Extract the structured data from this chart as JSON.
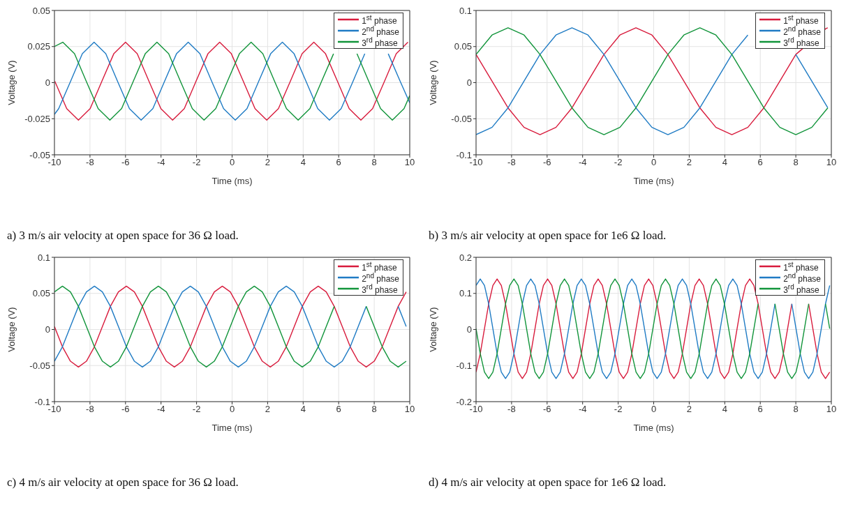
{
  "chart_data": [
    {
      "type": "line",
      "xlabel": "Time (ms)",
      "ylabel": "Voltage (V)",
      "xlim": [
        -10,
        10
      ],
      "xticks": [
        -10,
        -8,
        -6,
        -4,
        -2,
        0,
        2,
        4,
        6,
        8,
        10
      ],
      "ylim": [
        -0.05,
        0.05
      ],
      "yticks": [
        -0.05,
        -0.025,
        0,
        0.025,
        0.05
      ],
      "grid": true,
      "legend": "top right",
      "annotations": [
        "a) 3 m/s air velocity at open space for 36 Ω load."
      ],
      "series": [
        {
          "name": "1$^{st}$ phase",
          "color": "#d81b3c",
          "x": [
            -9.98,
            -9.31,
            -8.65,
            -7.99,
            -7.33,
            -6.66,
            -6.0,
            -5.34,
            -4.68,
            -4.01,
            -3.35,
            -2.69,
            -2.03,
            -1.36,
            -0.7,
            -0.04,
            0.63,
            1.29,
            1.95,
            2.61,
            3.28,
            3.94,
            4.6,
            5.26,
            5.93,
            6.59,
            7.25,
            7.91,
            8.58,
            9.24,
            9.9
          ],
          "values": [
            0.001,
            -0.018,
            -0.026,
            -0.018,
            0.001,
            0.02,
            0.028,
            0.02,
            0.001,
            -0.018,
            -0.026,
            -0.018,
            0.001,
            0.02,
            0.028,
            0.02,
            0.001,
            -0.018,
            -0.026,
            -0.018,
            0.001,
            0.02,
            0.028,
            0.02,
            0.001,
            -0.018,
            -0.026,
            -0.018,
            0.001,
            0.02,
            0.028
          ]
        },
        {
          "name": "2$^{nd}$ phase",
          "color": "#1f7bc4",
          "x": [
            -10,
            -9.76,
            -9.09,
            -8.43,
            -7.77,
            -7.11,
            -6.45,
            -5.78,
            -5.12,
            -4.46,
            -3.8,
            -3.13,
            -2.47,
            -1.81,
            -1.15,
            -0.48,
            0.18,
            0.84,
            1.5,
            2.17,
            2.83,
            3.49,
            4.16,
            4.82,
            5.48,
            6.14,
            6.81,
            7.47,
            8.13,
            8.79,
            9.46,
            10
          ],
          "values": [
            -0.022,
            -0.018,
            0.001,
            0.02,
            0.028,
            0.02,
            0.001,
            -0.018,
            -0.026,
            -0.018,
            0.001,
            0.02,
            0.028,
            0.02,
            0.001,
            -0.018,
            -0.026,
            -0.018,
            0.001,
            0.02,
            0.028,
            0.02,
            0.001,
            -0.018,
            -0.026,
            -0.018,
            0.001,
            0.02,
            null,
            0.02,
            0.001,
            -0.014
          ]
        },
        {
          "name": "3$^{rd}$ phase",
          "color": "#11943a",
          "x": [
            -10,
            -9.53,
            -8.87,
            -8.21,
            -7.54,
            -6.88,
            -6.22,
            -5.56,
            -4.89,
            -4.23,
            -3.57,
            -2.91,
            -2.24,
            -1.58,
            -0.92,
            -0.26,
            0.41,
            1.07,
            1.73,
            2.39,
            3.06,
            3.72,
            4.38,
            5.04,
            5.71,
            6.37,
            7.03,
            7.69,
            8.36,
            9.02,
            9.68,
            10
          ],
          "values": [
            0.025,
            0.028,
            0.02,
            0.001,
            -0.018,
            -0.026,
            -0.018,
            0.001,
            0.02,
            0.028,
            0.02,
            0.001,
            -0.018,
            -0.026,
            -0.018,
            0.001,
            0.02,
            0.028,
            0.02,
            0.001,
            -0.018,
            -0.026,
            -0.018,
            0.001,
            0.02,
            null,
            0.02,
            0.001,
            -0.018,
            -0.026,
            -0.018,
            -0.009
          ]
        }
      ]
    },
    {
      "type": "line",
      "xlabel": "Time (ms)",
      "ylabel": "Voltage (V)",
      "xlim": [
        -10,
        10
      ],
      "xticks": [
        -10,
        -8,
        -6,
        -4,
        -2,
        0,
        2,
        4,
        6,
        8,
        10
      ],
      "ylim": [
        -0.1,
        0.1
      ],
      "yticks": [
        -0.1,
        -0.05,
        0,
        0.05,
        0.1
      ],
      "grid": true,
      "legend": "top right",
      "annotations": [
        "b) 3 m/s air velocity at open space for 1e6 Ω load."
      ],
      "x": [
        -10,
        -9.1,
        -8.2,
        -7.3,
        -6.4,
        -5.5,
        -4.6,
        -3.7,
        -2.8,
        -1.9,
        -1.0,
        -0.1,
        0.8,
        1.7,
        2.6,
        3.5,
        4.4,
        5.3,
        6.2,
        7.1,
        8.0,
        8.9,
        9.8
      ],
      "series": [
        {
          "name": "1$^{st}$ phase",
          "color": "#d81b3c",
          "x": [
            -10,
            -9.1,
            -8.2,
            -7.3,
            -6.4,
            -5.5,
            -4.6,
            -3.7,
            -2.8,
            -1.9,
            -1.0,
            -0.1,
            0.8,
            1.7,
            2.6,
            3.5,
            4.4,
            5.3,
            6.2,
            7.1,
            8.0,
            9.7,
            9.8
          ],
          "values": [
            0.039,
            0.002,
            -0.035,
            -0.062,
            -0.072,
            -0.062,
            -0.035,
            0.002,
            0.039,
            0.066,
            0.076,
            0.066,
            0.039,
            0.002,
            -0.035,
            -0.062,
            -0.072,
            -0.062,
            -0.035,
            0.002,
            0.039,
            0.075,
            0.076
          ]
        },
        {
          "name": "2$^{nd}$ phase",
          "color": "#1f7bc4",
          "values": [
            -0.072,
            -0.062,
            -0.035,
            0.002,
            0.039,
            0.066,
            0.076,
            0.066,
            0.039,
            0.002,
            -0.035,
            -0.062,
            -0.072,
            -0.062,
            -0.035,
            0.002,
            0.039,
            0.066,
            null,
            null,
            0.039,
            0.002,
            -0.035
          ]
        },
        {
          "name": "3$^{rd}$ phase",
          "color": "#11943a",
          "values": [
            0.039,
            0.066,
            0.076,
            0.066,
            0.039,
            0.002,
            -0.035,
            -0.062,
            -0.072,
            -0.062,
            -0.035,
            0.002,
            0.039,
            0.066,
            0.076,
            0.066,
            0.039,
            0.002,
            -0.035,
            -0.062,
            -0.072,
            -0.062,
            -0.035
          ]
        }
      ]
    },
    {
      "type": "line",
      "xlabel": "Time (ms)",
      "ylabel": "Voltage (V)",
      "xlim": [
        -10,
        10
      ],
      "xticks": [
        -10,
        -8,
        -6,
        -4,
        -2,
        0,
        2,
        4,
        6,
        8,
        10
      ],
      "ylim": [
        -0.1,
        0.1
      ],
      "yticks": [
        -0.1,
        -0.05,
        0,
        0.05,
        0.1
      ],
      "grid": true,
      "legend": "top right",
      "annotations": [
        "c) 4 m/s air velocity at open space for 36 Ω load."
      ],
      "x": [
        -10,
        -9.55,
        -9.1,
        -8.65,
        -8.2,
        -7.75,
        -7.3,
        -6.85,
        -6.4,
        -5.95,
        -5.5,
        -5.05,
        -4.6,
        -4.15,
        -3.7,
        -3.25,
        -2.8,
        -2.35,
        -1.9,
        -1.45,
        -1,
        -0.55,
        -0.1,
        0.35,
        0.8,
        1.25,
        1.7,
        2.15,
        2.6,
        3.05,
        3.5,
        3.95,
        4.4,
        4.85,
        5.3,
        5.75,
        6.2,
        6.65,
        7.1,
        7.55,
        8,
        8.45,
        8.9,
        9.35,
        9.8
      ],
      "series": [
        {
          "name": "1$^{st}$ phase",
          "color": "#d81b3c",
          "values": [
            0.004,
            -0.024,
            -0.044,
            -0.052,
            -0.044,
            -0.024,
            0.004,
            0.032,
            0.052,
            0.06,
            0.052,
            0.032,
            0.004,
            -0.024,
            -0.044,
            -0.052,
            -0.044,
            -0.024,
            0.004,
            0.032,
            0.052,
            0.06,
            0.052,
            0.032,
            0.004,
            -0.024,
            -0.044,
            -0.052,
            -0.044,
            -0.024,
            0.004,
            0.032,
            0.052,
            0.06,
            0.052,
            0.032,
            0.004,
            -0.024,
            -0.044,
            -0.052,
            -0.044,
            -0.024,
            0.004,
            0.032,
            0.052
          ]
        },
        {
          "name": "2$^{nd}$ phase",
          "color": "#1f7bc4",
          "values": [
            -0.044,
            -0.024,
            0.004,
            0.032,
            0.052,
            0.06,
            0.052,
            0.032,
            0.004,
            -0.024,
            -0.044,
            -0.052,
            -0.044,
            -0.024,
            0.004,
            0.032,
            0.052,
            0.06,
            0.052,
            0.032,
            0.004,
            -0.024,
            -0.044,
            -0.052,
            -0.044,
            -0.024,
            0.004,
            0.032,
            0.052,
            0.06,
            0.052,
            0.032,
            0.004,
            -0.024,
            -0.044,
            -0.052,
            -0.044,
            -0.024,
            0.004,
            0.032,
            null,
            null,
            null,
            0.032,
            0.004
          ]
        },
        {
          "name": "3$^{rd}$ phase",
          "color": "#11943a",
          "values": [
            0.052,
            0.06,
            0.052,
            0.032,
            0.004,
            -0.024,
            -0.044,
            -0.052,
            -0.044,
            -0.024,
            0.004,
            0.032,
            0.052,
            0.06,
            0.052,
            0.032,
            0.004,
            -0.024,
            -0.044,
            -0.052,
            -0.044,
            -0.024,
            0.004,
            0.032,
            0.052,
            0.06,
            0.052,
            0.032,
            0.004,
            -0.024,
            -0.044,
            -0.052,
            -0.044,
            -0.024,
            0.004,
            0.032,
            null,
            null,
            null,
            0.032,
            0.004,
            -0.024,
            -0.044,
            -0.052,
            -0.044
          ]
        }
      ]
    },
    {
      "type": "line",
      "xlabel": "Time (ms)",
      "ylabel": "Voltage (V)",
      "xlim": [
        -10,
        10
      ],
      "xticks": [
        -10,
        -8,
        -6,
        -4,
        -2,
        0,
        2,
        4,
        6,
        8,
        10
      ],
      "ylim": [
        -0.2,
        0.2
      ],
      "yticks": [
        -0.2,
        -0.1,
        0,
        0.1,
        0.2
      ],
      "grid": true,
      "legend": "top right",
      "annotations": [
        "d) 4 m/s air velocity at open space for 1e6 Ω load."
      ],
      "x": [
        -10,
        -9.763,
        -9.526,
        -9.289,
        -9.052,
        -8.815,
        -8.578,
        -8.341,
        -8.104,
        -7.867,
        -7.63,
        -7.393,
        -7.156,
        -6.919,
        -6.682,
        -6.445,
        -6.208,
        -5.971,
        -5.734,
        -5.497,
        -5.26,
        -5.023,
        -4.786,
        -4.549,
        -4.312,
        -4.075,
        -3.838,
        -3.601,
        -3.364,
        -3.127,
        -2.89,
        -2.653,
        -2.416,
        -2.179,
        -1.942,
        -1.705,
        -1.468,
        -1.231,
        -0.994,
        -0.757,
        -0.52,
        -0.283,
        -0.046,
        0.191,
        0.428,
        0.665,
        0.902,
        1.139,
        1.376,
        1.613,
        1.85,
        2.087,
        2.324,
        2.561,
        2.798,
        3.035,
        3.272,
        3.509,
        3.746,
        3.983,
        4.22,
        4.457,
        4.694,
        4.931,
        5.168,
        5.405,
        5.642,
        5.879,
        6.116,
        6.353,
        6.59,
        6.827,
        7.064,
        7.301,
        7.538,
        7.775,
        8.012,
        8.249,
        8.486,
        8.723,
        8.96,
        9.197,
        9.434,
        9.671,
        9.908
      ],
      "series": [
        {
          "name": "1$^{st}$ phase",
          "color": "#d81b3c",
          "values": [
            -0.118,
            -0.067,
            0.002,
            0.071,
            0.122,
            0.14,
            0.122,
            0.071,
            0.002,
            -0.067,
            -0.118,
            -0.136,
            -0.118,
            -0.067,
            0.002,
            0.071,
            0.122,
            0.14,
            0.122,
            0.071,
            0.002,
            -0.067,
            -0.118,
            -0.136,
            -0.118,
            -0.067,
            0.002,
            0.071,
            0.122,
            0.14,
            0.122,
            0.071,
            0.002,
            -0.067,
            -0.118,
            -0.136,
            -0.118,
            -0.067,
            0.002,
            0.071,
            0.122,
            0.14,
            0.122,
            0.071,
            0.002,
            -0.067,
            -0.118,
            -0.136,
            -0.118,
            -0.067,
            0.002,
            0.071,
            0.122,
            0.14,
            0.122,
            0.071,
            0.002,
            -0.067,
            -0.118,
            -0.136,
            -0.118,
            -0.067,
            0.002,
            0.071,
            0.122,
            0.14,
            0.122,
            0.071,
            0.002,
            -0.067,
            -0.118,
            -0.136,
            -0.118,
            -0.067,
            0.002,
            0.071,
            null,
            null,
            null,
            0.071,
            0.002,
            -0.067,
            -0.118,
            -0.136,
            -0.118
          ]
        },
        {
          "name": "2$^{nd}$ phase",
          "color": "#1f7bc4",
          "values": [
            0.122,
            0.14,
            0.122,
            0.071,
            0.002,
            -0.067,
            -0.118,
            -0.136,
            -0.118,
            -0.067,
            0.002,
            0.071,
            0.122,
            0.14,
            0.122,
            0.071,
            0.002,
            -0.067,
            -0.118,
            -0.136,
            -0.118,
            -0.067,
            0.002,
            0.071,
            0.122,
            0.14,
            0.122,
            0.071,
            0.002,
            -0.067,
            -0.118,
            -0.136,
            -0.118,
            -0.067,
            0.002,
            0.071,
            0.122,
            0.14,
            0.122,
            0.071,
            0.002,
            -0.067,
            -0.118,
            -0.136,
            -0.118,
            -0.067,
            0.002,
            0.071,
            0.122,
            0.14,
            0.122,
            0.071,
            0.002,
            -0.067,
            -0.118,
            -0.136,
            -0.118,
            -0.067,
            0.002,
            0.071,
            0.122,
            0.14,
            0.122,
            0.071,
            0.002,
            -0.067,
            -0.118,
            -0.136,
            -0.118,
            -0.067,
            0.002,
            0.071,
            null,
            null,
            null,
            0.071,
            0.002,
            -0.067,
            -0.118,
            -0.136,
            -0.118,
            -0.067,
            0.002,
            0.071,
            0.122
          ]
        },
        {
          "name": "3$^{rd}$ phase",
          "color": "#11943a",
          "values": [
            0.002,
            -0.067,
            -0.118,
            -0.136,
            -0.118,
            -0.067,
            0.002,
            0.071,
            0.122,
            0.14,
            0.122,
            0.071,
            0.002,
            -0.067,
            -0.118,
            -0.136,
            -0.118,
            -0.067,
            0.002,
            0.071,
            0.122,
            0.14,
            0.122,
            0.071,
            0.002,
            -0.067,
            -0.118,
            -0.136,
            -0.118,
            -0.067,
            0.002,
            0.071,
            0.122,
            0.14,
            0.122,
            0.071,
            0.002,
            -0.067,
            -0.118,
            -0.136,
            -0.118,
            -0.067,
            0.002,
            0.071,
            0.122,
            0.14,
            0.122,
            0.071,
            0.002,
            -0.067,
            -0.118,
            -0.136,
            -0.118,
            -0.067,
            0.002,
            0.071,
            0.122,
            0.14,
            0.122,
            0.071,
            0.002,
            -0.067,
            -0.118,
            -0.136,
            -0.118,
            -0.067,
            0.002,
            0.071,
            null,
            null,
            null,
            0.071,
            0.002,
            -0.067,
            -0.118,
            -0.136,
            -0.118,
            -0.067,
            0.002,
            0.071,
            null,
            null,
            null,
            0.071,
            0.002
          ]
        }
      ]
    }
  ]
}
